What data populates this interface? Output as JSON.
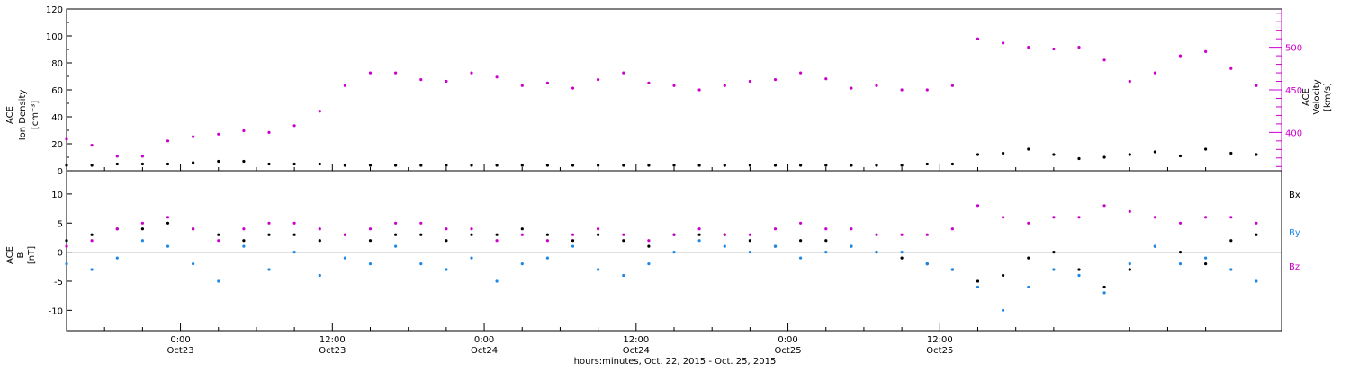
{
  "chart_data": [
    {
      "id": "top",
      "type": "scatter",
      "ylabel_left": [
        "ACE",
        "Ion Density",
        "[cm⁻³]"
      ],
      "ylabel_right": [
        "ACE",
        "Velocity",
        "[km/s]"
      ],
      "ylim_left": [
        0,
        120
      ],
      "yticks_left": [
        0,
        20,
        40,
        60,
        80,
        100,
        120
      ],
      "ylim_right": [
        355,
        545
      ],
      "yticks_right": [
        400,
        450,
        500
      ],
      "series": [
        {
          "axis": "left",
          "color": "#000000",
          "points": [
            [
              0,
              4
            ],
            [
              2,
              4
            ],
            [
              4,
              5
            ],
            [
              6,
              5
            ],
            [
              8,
              5
            ],
            [
              10,
              6
            ],
            [
              12,
              7
            ],
            [
              14,
              7
            ],
            [
              16,
              5
            ],
            [
              18,
              5
            ],
            [
              20,
              5
            ],
            [
              22,
              4
            ],
            [
              24,
              4
            ],
            [
              26,
              4
            ],
            [
              28,
              4
            ],
            [
              30,
              4
            ],
            [
              32,
              4
            ],
            [
              34,
              4
            ],
            [
              36,
              4
            ],
            [
              38,
              4
            ],
            [
              40,
              4
            ],
            [
              42,
              4
            ],
            [
              44,
              4
            ],
            [
              46,
              4
            ],
            [
              48,
              4
            ],
            [
              50,
              4
            ],
            [
              52,
              4
            ],
            [
              54,
              4
            ],
            [
              56,
              4
            ],
            [
              58,
              4
            ],
            [
              60,
              4
            ],
            [
              62,
              4
            ],
            [
              64,
              4
            ],
            [
              66,
              4
            ],
            [
              68,
              5
            ],
            [
              70,
              5
            ],
            [
              72,
              12
            ],
            [
              74,
              13
            ],
            [
              76,
              16
            ],
            [
              78,
              12
            ],
            [
              80,
              9
            ],
            [
              82,
              10
            ],
            [
              84,
              12
            ],
            [
              86,
              14
            ],
            [
              88,
              11
            ],
            [
              90,
              16
            ],
            [
              92,
              13
            ],
            [
              94,
              12
            ]
          ]
        },
        {
          "axis": "right",
          "color": "#cc00cc",
          "points": [
            [
              0,
              392
            ],
            [
              2,
              385
            ],
            [
              4,
              372
            ],
            [
              6,
              372
            ],
            [
              8,
              390
            ],
            [
              10,
              395
            ],
            [
              12,
              398
            ],
            [
              14,
              402
            ],
            [
              16,
              400
            ],
            [
              18,
              408
            ],
            [
              20,
              425
            ],
            [
              22,
              455
            ],
            [
              24,
              470
            ],
            [
              26,
              470
            ],
            [
              28,
              462
            ],
            [
              30,
              460
            ],
            [
              32,
              470
            ],
            [
              34,
              465
            ],
            [
              36,
              455
            ],
            [
              38,
              458
            ],
            [
              40,
              452
            ],
            [
              42,
              462
            ],
            [
              44,
              470
            ],
            [
              46,
              458
            ],
            [
              48,
              455
            ],
            [
              50,
              450
            ],
            [
              52,
              455
            ],
            [
              54,
              460
            ],
            [
              56,
              462
            ],
            [
              58,
              470
            ],
            [
              60,
              463
            ],
            [
              62,
              452
            ],
            [
              64,
              455
            ],
            [
              66,
              450
            ],
            [
              68,
              450
            ],
            [
              70,
              455
            ],
            [
              72,
              510
            ],
            [
              74,
              505
            ],
            [
              76,
              500
            ],
            [
              78,
              498
            ],
            [
              80,
              500
            ],
            [
              82,
              485
            ],
            [
              84,
              460
            ],
            [
              86,
              470
            ],
            [
              88,
              490
            ],
            [
              90,
              495
            ],
            [
              92,
              475
            ],
            [
              94,
              455
            ]
          ]
        }
      ]
    },
    {
      "id": "bottom",
      "type": "scatter",
      "ylabel_left": [
        "ACE",
        "B",
        "[nT]"
      ],
      "ylim": [
        -13.5,
        14
      ],
      "yticks": [
        -10,
        -5,
        0,
        5,
        10
      ],
      "legend_placement": "right",
      "series": [
        {
          "name": "Bx",
          "color": "#000000",
          "points": [
            [
              0,
              2
            ],
            [
              2,
              3
            ],
            [
              4,
              4
            ],
            [
              6,
              4
            ],
            [
              8,
              5
            ],
            [
              10,
              4
            ],
            [
              12,
              3
            ],
            [
              14,
              2
            ],
            [
              16,
              3
            ],
            [
              18,
              3
            ],
            [
              20,
              2
            ],
            [
              22,
              3
            ],
            [
              24,
              2
            ],
            [
              26,
              3
            ],
            [
              28,
              3
            ],
            [
              30,
              2
            ],
            [
              32,
              3
            ],
            [
              34,
              3
            ],
            [
              36,
              4
            ],
            [
              38,
              3
            ],
            [
              40,
              2
            ],
            [
              42,
              3
            ],
            [
              44,
              2
            ],
            [
              46,
              1
            ],
            [
              48,
              3
            ],
            [
              50,
              3
            ],
            [
              52,
              3
            ],
            [
              54,
              2
            ],
            [
              56,
              1
            ],
            [
              58,
              2
            ],
            [
              60,
              2
            ],
            [
              62,
              1
            ],
            [
              64,
              0
            ],
            [
              66,
              -1
            ],
            [
              68,
              -2
            ],
            [
              70,
              -3
            ],
            [
              72,
              -5
            ],
            [
              74,
              -4
            ],
            [
              76,
              -1
            ],
            [
              78,
              0
            ],
            [
              80,
              -3
            ],
            [
              82,
              -6
            ],
            [
              84,
              -3
            ],
            [
              86,
              1
            ],
            [
              88,
              0
            ],
            [
              90,
              -2
            ],
            [
              92,
              2
            ],
            [
              94,
              3
            ]
          ]
        },
        {
          "name": "By",
          "color": "#1e88e5",
          "points": [
            [
              0,
              -2
            ],
            [
              2,
              -3
            ],
            [
              4,
              -1
            ],
            [
              6,
              2
            ],
            [
              8,
              1
            ],
            [
              10,
              -2
            ],
            [
              12,
              -5
            ],
            [
              14,
              1
            ],
            [
              16,
              -3
            ],
            [
              18,
              0
            ],
            [
              20,
              -4
            ],
            [
              22,
              -1
            ],
            [
              24,
              -2
            ],
            [
              26,
              1
            ],
            [
              28,
              -2
            ],
            [
              30,
              -3
            ],
            [
              32,
              -1
            ],
            [
              34,
              -5
            ],
            [
              36,
              -2
            ],
            [
              38,
              -1
            ],
            [
              40,
              1
            ],
            [
              42,
              -3
            ],
            [
              44,
              -4
            ],
            [
              46,
              -2
            ],
            [
              48,
              0
            ],
            [
              50,
              2
            ],
            [
              52,
              1
            ],
            [
              54,
              0
            ],
            [
              56,
              1
            ],
            [
              58,
              -1
            ],
            [
              60,
              0
            ],
            [
              62,
              1
            ],
            [
              64,
              0
            ],
            [
              66,
              0
            ],
            [
              68,
              -2
            ],
            [
              70,
              -3
            ],
            [
              72,
              -6
            ],
            [
              74,
              -10
            ],
            [
              76,
              -6
            ],
            [
              78,
              -3
            ],
            [
              80,
              -4
            ],
            [
              82,
              -7
            ],
            [
              84,
              -2
            ],
            [
              86,
              1
            ],
            [
              88,
              -2
            ],
            [
              90,
              -1
            ],
            [
              92,
              -3
            ],
            [
              94,
              -5
            ]
          ]
        },
        {
          "name": "Bz",
          "color": "#cc00cc",
          "points": [
            [
              0,
              1
            ],
            [
              2,
              2
            ],
            [
              4,
              4
            ],
            [
              6,
              5
            ],
            [
              8,
              6
            ],
            [
              10,
              4
            ],
            [
              12,
              2
            ],
            [
              14,
              4
            ],
            [
              16,
              5
            ],
            [
              18,
              5
            ],
            [
              20,
              4
            ],
            [
              22,
              3
            ],
            [
              24,
              4
            ],
            [
              26,
              5
            ],
            [
              28,
              5
            ],
            [
              30,
              4
            ],
            [
              32,
              4
            ],
            [
              34,
              2
            ],
            [
              36,
              3
            ],
            [
              38,
              2
            ],
            [
              40,
              3
            ],
            [
              42,
              4
            ],
            [
              44,
              3
            ],
            [
              46,
              2
            ],
            [
              48,
              3
            ],
            [
              50,
              4
            ],
            [
              52,
              3
            ],
            [
              54,
              3
            ],
            [
              56,
              4
            ],
            [
              58,
              5
            ],
            [
              60,
              4
            ],
            [
              62,
              4
            ],
            [
              64,
              3
            ],
            [
              66,
              3
            ],
            [
              68,
              3
            ],
            [
              70,
              4
            ],
            [
              72,
              8
            ],
            [
              74,
              6
            ],
            [
              76,
              5
            ],
            [
              78,
              6
            ],
            [
              80,
              6
            ],
            [
              82,
              8
            ],
            [
              84,
              7
            ],
            [
              86,
              6
            ],
            [
              88,
              5
            ],
            [
              90,
              6
            ],
            [
              92,
              6
            ],
            [
              94,
              5
            ]
          ]
        }
      ]
    }
  ],
  "xaxis": {
    "xlim_hours": [
      0,
      96
    ],
    "ticks": [
      {
        "hour": 9,
        "time": "0:00",
        "date": "Oct23"
      },
      {
        "hour": 21,
        "time": "12:00",
        "date": "Oct23"
      },
      {
        "hour": 33,
        "time": "0:00",
        "date": "Oct24"
      },
      {
        "hour": 45,
        "time": "12:00",
        "date": "Oct24"
      },
      {
        "hour": 57,
        "time": "0:00",
        "date": "Oct25"
      },
      {
        "hour": 69,
        "time": "12:00",
        "date": "Oct25"
      }
    ],
    "xlabel": "hours:minutes, Oct. 22, 2015 - Oct. 25, 2015"
  },
  "colors": {
    "density": "#000000",
    "velocity": "#cc00cc",
    "bx": "#000000",
    "by": "#1e88e5",
    "bz": "#cc00cc",
    "axis": "#000000"
  }
}
